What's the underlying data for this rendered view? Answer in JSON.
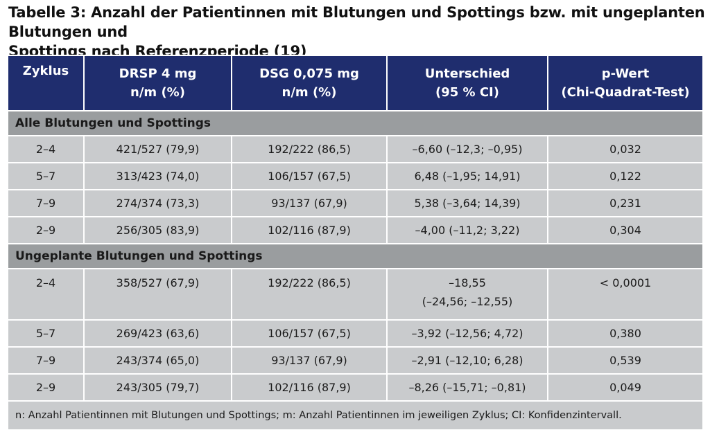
{
  "caption": {
    "line1": "Tabelle 3: Anzahl der Patientinnen mit Blutungen und Spottings bzw. mit ungeplanten Blutungen und",
    "line2": "Spottings nach Referenzperiode (19)"
  },
  "headers": [
    {
      "l1": "Zyklus",
      "l2": ""
    },
    {
      "l1": "DRSP 4 mg",
      "l2": "n/m (%)"
    },
    {
      "l1": "DSG 0,075 mg",
      "l2": "n/m (%)"
    },
    {
      "l1": "Unterschied",
      "l2": "(95 % CI)"
    },
    {
      "l1": "p-Wert",
      "l2": "(Chi-Quadrat-Test)"
    }
  ],
  "sections": [
    {
      "title": "Alle Blutungen und Spottings",
      "rows": [
        [
          "2–4",
          "421/527 (79,9)",
          "192/222 (86,5)",
          "–6,60 (–12,3; –0,95)",
          "0,032"
        ],
        [
          "5–7",
          "313/423 (74,0)",
          "106/157 (67,5)",
          "6,48 (–1,95; 14,91)",
          "0,122"
        ],
        [
          "7–9",
          "274/374 (73,3)",
          "93/137 (67,9)",
          "5,38 (–3,64; 14,39)",
          "0,231"
        ],
        [
          "2–9",
          "256/305 (83,9)",
          "102/116 (87,9)",
          "–4,00 (–11,2; 3,22)",
          "0,304"
        ]
      ]
    },
    {
      "title": "Ungeplante Blutungen und Spottings",
      "rows": [
        [
          "2–4",
          "358/527 (67,9)",
          "192/222 (86,5)",
          "–18,55",
          "< 0,0001",
          "(–24,56; –12,55)"
        ],
        [
          "5–7",
          "269/423 (63,6)",
          "106/157 (67,5)",
          "–3,92 (–12,56; 4,72)",
          "0,380"
        ],
        [
          "7–9",
          "243/374 (65,0)",
          "93/137 (67,9)",
          "–2,91 (–12,10; 6,28)",
          "0,539"
        ],
        [
          "2–9",
          "243/305 (79,7)",
          "102/116 (87,9)",
          "–8,26 (–15,71; –0,81)",
          "0,049"
        ]
      ]
    }
  ],
  "footnote": "n: Anzahl Patientinnen mit Blutungen und Spottings; m: Anzahl Patientinnen im jeweiligen Zyklus; CI: Konfidenzintervall.",
  "colors": {
    "header_bg": "#1f2d6e",
    "section_bg": "#9a9d9f",
    "cell_bg": "#c9cbcd"
  }
}
